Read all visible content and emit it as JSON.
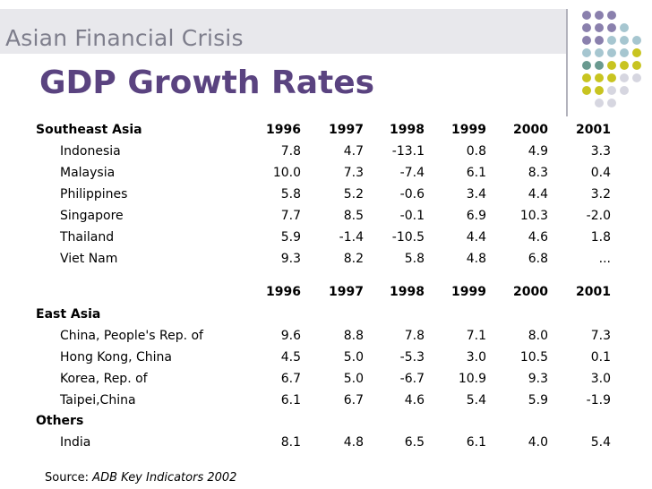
{
  "header": {
    "title": "Asian Financial Crisis"
  },
  "slide": {
    "title": "GDP Growth Rates"
  },
  "colors": {
    "purple": "#8a80ad",
    "blue": "#a6c6d0",
    "teal": "#6a9a90",
    "olive": "#c8c420",
    "light": "#d6d6e0"
  },
  "years": [
    "1996",
    "1997",
    "1998",
    "1999",
    "2000",
    "2001"
  ],
  "section1": {
    "title": "Southeast Asia",
    "rows": [
      {
        "country": "Indonesia",
        "values": [
          "7.8",
          "4.7",
          "-13.1",
          "0.8",
          "4.9",
          "3.3"
        ]
      },
      {
        "country": "Malaysia",
        "values": [
          "10.0",
          "7.3",
          "-7.4",
          "6.1",
          "8.3",
          "0.4"
        ]
      },
      {
        "country": "Philippines",
        "values": [
          "5.8",
          "5.2",
          "-0.6",
          "3.4",
          "4.4",
          "3.2"
        ]
      },
      {
        "country": "Singapore",
        "values": [
          "7.7",
          "8.5",
          "-0.1",
          "6.9",
          "10.3",
          "-2.0"
        ]
      },
      {
        "country": "Thailand",
        "values": [
          "5.9",
          "-1.4",
          "-10.5",
          "4.4",
          "4.6",
          "1.8"
        ]
      },
      {
        "country": "Viet Nam",
        "values": [
          "9.3",
          "8.2",
          "5.8",
          "4.8",
          "6.8",
          "..."
        ]
      }
    ]
  },
  "section2": {
    "title": "East Asia",
    "rows": [
      {
        "country": "China, People's Rep. of",
        "values": [
          "9.6",
          "8.8",
          "7.8",
          "7.1",
          "8.0",
          "7.3"
        ]
      },
      {
        "country": "Hong Kong, China",
        "values": [
          "4.5",
          "5.0",
          "-5.3",
          "3.0",
          "10.5",
          "0.1"
        ]
      },
      {
        "country": "Korea, Rep. of",
        "values": [
          "6.7",
          "5.0",
          "-6.7",
          "10.9",
          "9.3",
          "3.0"
        ]
      },
      {
        "country": "Taipei,China",
        "values": [
          "6.1",
          "6.7",
          "4.6",
          "5.4",
          "5.9",
          "-1.9"
        ]
      }
    ]
  },
  "section3": {
    "title": "Others",
    "rows": [
      {
        "country": "India",
        "values": [
          "8.1",
          "4.8",
          "6.5",
          "6.1",
          "4.0",
          "5.4"
        ]
      }
    ]
  },
  "source": {
    "label": "Source:",
    "text": "ADB Key Indicators 2002"
  }
}
